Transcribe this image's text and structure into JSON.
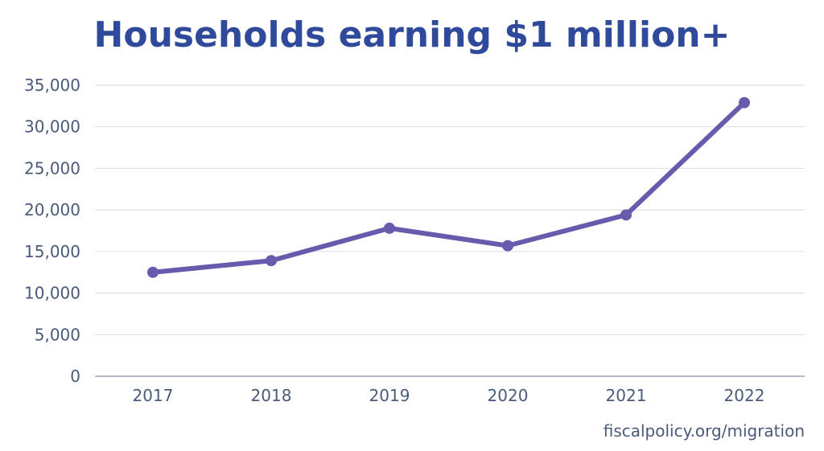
{
  "chart_data": {
    "type": "line",
    "title": "Households earning $1 million+",
    "xlabel": "",
    "ylabel": "",
    "categories": [
      "2017",
      "2018",
      "2019",
      "2020",
      "2021",
      "2022"
    ],
    "series": [
      {
        "values": [
          12500,
          13900,
          17800,
          15700,
          19400,
          32900
        ],
        "color": "#6a5aad"
      }
    ],
    "ylim": [
      0,
      35000
    ],
    "yticks": [
      0,
      5000,
      10000,
      15000,
      20000,
      25000,
      30000,
      35000
    ],
    "ytick_labels": [
      "0",
      "5,000",
      "10,000",
      "15,000",
      "20,000",
      "25,000",
      "30,000",
      "35,000"
    ],
    "grid": true,
    "grid_color": "#d9dee8",
    "axis_color": "#9aa3b5",
    "title_color": "#2f4a9a",
    "label_color": "#4a5a7a",
    "legend": "none"
  },
  "source": "fiscalpolicy.org/migration"
}
